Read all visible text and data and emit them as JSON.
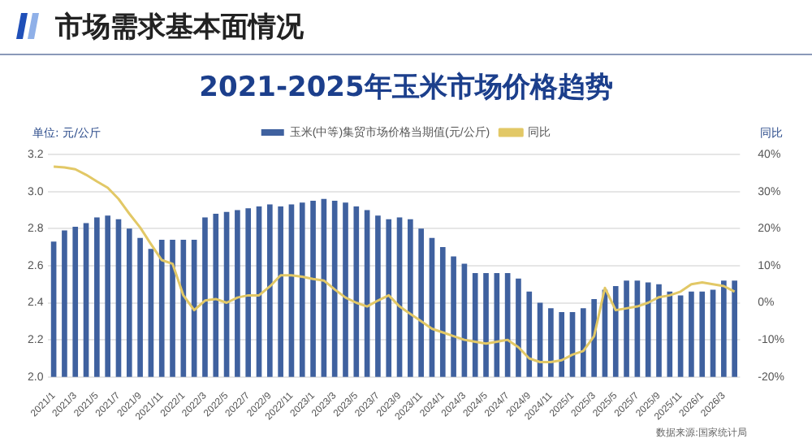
{
  "chart_data": {
    "type": "bar",
    "title": "2021-2025年玉米市场价格趋势",
    "subtitle": "市场需求基本面情况",
    "ylabel": "单位: 元/公斤",
    "y2label": "同比",
    "categories": [
      "2021/1",
      null,
      "2021/3",
      null,
      "2021/5",
      null,
      "2021/7",
      null,
      "2021/9",
      null,
      "2021/11",
      null,
      "2022/1",
      null,
      "2022/3",
      null,
      "2022/5",
      null,
      "2022/7",
      null,
      "2022/9",
      null,
      "2022/11",
      null,
      "2023/1",
      null,
      "2023/3",
      null,
      "2023/5",
      null,
      "2023/7",
      null,
      "2023/9",
      null,
      "2023/11",
      null,
      "2024/1",
      null,
      "2024/3",
      null,
      "2024/5",
      null,
      "2024/7",
      null,
      "2024/9",
      null,
      "2024/11",
      null,
      "2025/1",
      null,
      "2025/3",
      null,
      "2025/5",
      null,
      "2025/7",
      null,
      "2025/9",
      null,
      "2025/11",
      null,
      "2026/1",
      null,
      "2026/3",
      null
    ],
    "series": [
      {
        "name": "玉米(中等)集贸市场价格当期值(元/公斤)",
        "color": "#3f619f",
        "values": [
          2.73,
          2.79,
          2.81,
          2.83,
          2.86,
          2.87,
          2.85,
          2.8,
          2.75,
          2.69,
          2.74,
          2.74,
          2.74,
          2.74,
          2.86,
          2.88,
          2.89,
          2.9,
          2.91,
          2.92,
          2.93,
          2.92,
          2.93,
          2.94,
          2.95,
          2.96,
          2.95,
          2.94,
          2.92,
          2.9,
          2.87,
          2.85,
          2.86,
          2.85,
          2.8,
          2.75,
          2.7,
          2.65,
          2.61,
          2.56,
          2.56,
          2.56,
          2.56,
          2.53,
          2.46,
          2.4,
          2.37,
          2.35,
          2.35,
          2.37,
          2.42,
          2.47,
          2.49,
          2.52,
          2.52,
          2.51,
          2.5,
          2.46,
          2.44,
          2.46,
          2.46,
          2.47,
          2.52,
          2.52
        ]
      },
      {
        "name": "同比",
        "type": "line",
        "axis": "y2",
        "color": "#e2c866",
        "values": [
          36.7,
          36.5,
          36,
          34.5,
          32.7,
          31,
          28,
          24,
          20.3,
          15.8,
          11.5,
          10.5,
          2,
          -2,
          0.6,
          1,
          0,
          1.4,
          2,
          2,
          4.4,
          7.4,
          7.4,
          7,
          6.4,
          6,
          3.6,
          1.4,
          0,
          -1,
          0.6,
          2,
          -1,
          -3,
          -5,
          -7,
          -8,
          -9,
          -10,
          -10.5,
          -11,
          -10.5,
          -10,
          -12,
          -15,
          -16,
          -16,
          -15.5,
          -14,
          -13,
          -9,
          4,
          -2,
          -1.5,
          -1,
          0,
          1.5,
          2,
          3,
          5,
          5.5,
          5,
          4.5,
          3
        ]
      }
    ],
    "ylim": [
      2.0,
      3.2
    ],
    "yticks": [
      {
        "value": 2,
        "label": "2.0"
      },
      2.2,
      2.4,
      2.6,
      2.8,
      {
        "value": 3,
        "label": "3.0"
      },
      3.2
    ],
    "y2lim": [
      -20,
      40
    ],
    "y2ticks": [
      {
        "value": -20,
        "label": "-20%"
      },
      {
        "value": -10,
        "label": "-10%"
      },
      {
        "value": 0,
        "label": "0%"
      },
      {
        "value": 10,
        "label": "10%"
      },
      {
        "value": 20,
        "label": "20%"
      },
      {
        "value": 30,
        "label": "30%"
      },
      {
        "value": 40,
        "label": "40%"
      }
    ],
    "grid": "y",
    "legend": "top",
    "marker": "none",
    "annotations": [
      "数据来源:国家统计局"
    ]
  }
}
